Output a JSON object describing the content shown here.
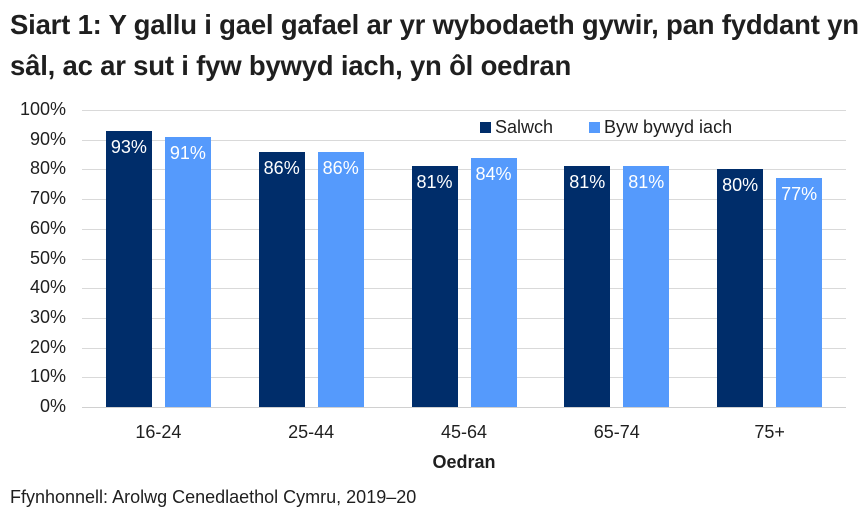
{
  "title": "Siart 1: Y gallu i gael gafael ar yr wybodaeth gywir, pan fyddant yn sâl, ac ar sut i fyw bywyd iach, yn ôl oedran",
  "source": "Ffynhonnell: Arolwg Cenedlaethol Cymru, 2019–20",
  "colors": {
    "Salwch": "#002d6a",
    "Byw bywyd iach": "#559afc"
  },
  "chart_data": {
    "type": "bar",
    "title": "Siart 1: Y gallu i gael gafael ar yr wybodaeth gywir, pan fyddant yn sâl, ac ar sut i fyw bywyd iach, yn ôl oedran",
    "categories": [
      "16-24",
      "25-44",
      "45-64",
      "65-74",
      "75+"
    ],
    "series": [
      {
        "name": "Salwch",
        "values": [
          93,
          86,
          81,
          81,
          80
        ],
        "labels": [
          "93%",
          "86%",
          "81%",
          "81%",
          "80%"
        ],
        "color": "#002d6a"
      },
      {
        "name": "Byw bywyd iach",
        "values": [
          91,
          86,
          84,
          81,
          77
        ],
        "labels": [
          "91%",
          "86%",
          "84%",
          "81%",
          "77%"
        ],
        "color": "#559afc"
      }
    ],
    "xlabel": "Oedran",
    "ylabel": "",
    "ylim": [
      0,
      100
    ],
    "yticks": [
      "0%",
      "10%",
      "20%",
      "30%",
      "40%",
      "50%",
      "60%",
      "70%",
      "80%",
      "90%",
      "100%"
    ],
    "grid": true,
    "legend_position": "top-right inside",
    "data_labels": "inside-top, white"
  }
}
